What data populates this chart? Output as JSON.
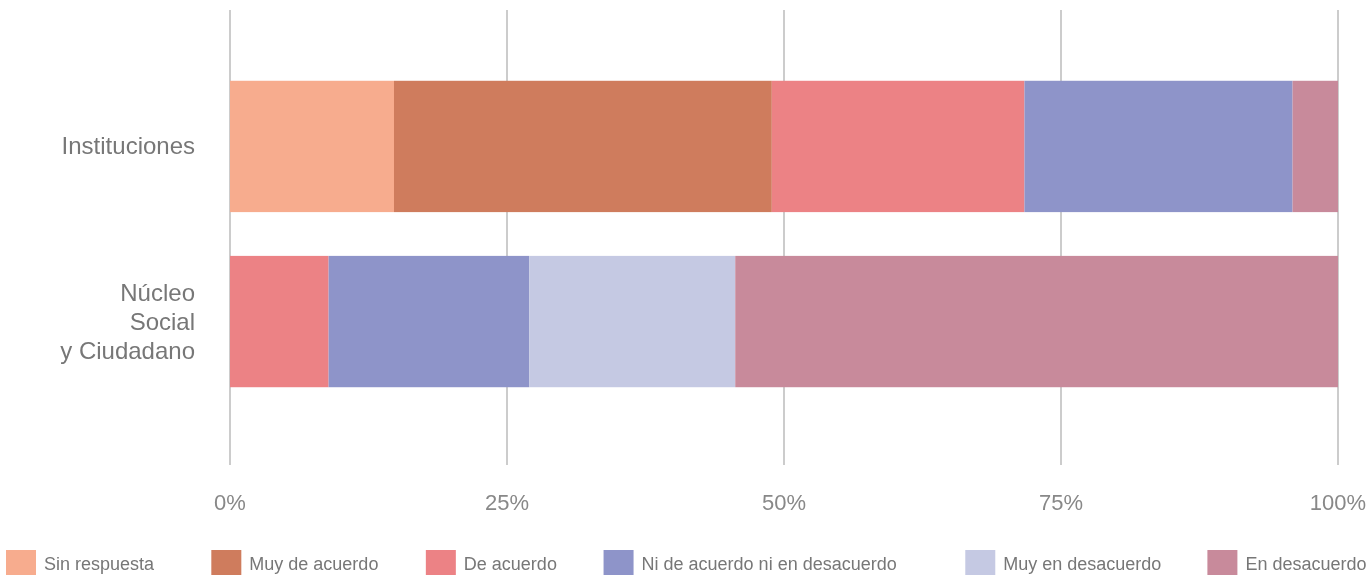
{
  "chart_data": {
    "type": "bar",
    "orientation": "horizontal",
    "stacked": true,
    "categories": [
      "Instituciones",
      "Núcleo Social y Ciudadano"
    ],
    "series": [
      {
        "name": "Sin respuesta",
        "color": "#f7ac8e",
        "values": [
          14.8,
          0
        ]
      },
      {
        "name": "Muy de acuerdo",
        "color": "#cf7c5d",
        "values": [
          34.1,
          0
        ]
      },
      {
        "name": "De acuerdo",
        "color": "#ec8285",
        "values": [
          22.8,
          8.9
        ]
      },
      {
        "name": "Ni de acuerdo ni en desacuerdo",
        "color": "#8e94c9",
        "values": [
          24.2,
          18.1
        ]
      },
      {
        "name": "Muy en desacuerdo",
        "color": "#c5c9e3",
        "values": [
          0,
          18.6
        ]
      },
      {
        "name": "En desacuerdo",
        "color": "#c88a9b",
        "values": [
          4.1,
          54.4
        ]
      }
    ],
    "xlim": [
      0,
      100
    ],
    "xticks": [
      {
        "value": 0,
        "label": "0%"
      },
      {
        "value": 25,
        "label": "25%"
      },
      {
        "value": 50,
        "label": "50%"
      },
      {
        "value": 75,
        "label": "75%"
      },
      {
        "value": 100,
        "label": "100%"
      }
    ],
    "grid": "x",
    "legend": "bottom"
  }
}
